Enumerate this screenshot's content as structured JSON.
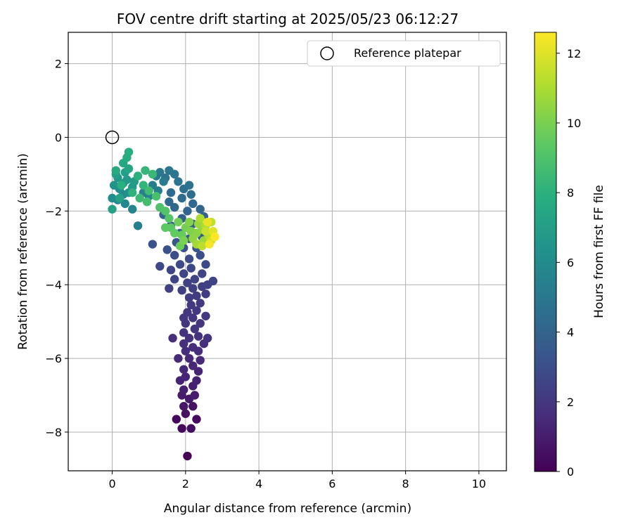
{
  "chart_data": {
    "type": "scatter",
    "title": "FOV centre drift starting at 2025/05/23 06:12:27",
    "xlabel": "Angular distance from reference (arcmin)",
    "ylabel": "Rotation from reference (arcmin)",
    "xlim": [
      -1.2,
      10.75
    ],
    "ylim": [
      -9.05,
      2.85
    ],
    "xticks": [
      "0",
      "2",
      "4",
      "6",
      "8",
      "10"
    ],
    "yticks": [
      "−8",
      "−6",
      "−4",
      "−2",
      "0",
      "2"
    ],
    "grid": true,
    "legend": {
      "position": "top-right",
      "entries": [
        "Reference platepar"
      ]
    },
    "colorbar": {
      "label": "Hours from first FF file",
      "range": [
        0,
        12.6
      ],
      "ticks": [
        "0",
        "2",
        "4",
        "6",
        "8",
        "10",
        "12"
      ],
      "colormap": "viridis"
    },
    "reference_point": {
      "x": 0,
      "y": 0,
      "marker": "open-circle"
    },
    "series": [
      {
        "marker": "filled-circle",
        "points": [
          [
            2.05,
            -8.65,
            0.0
          ],
          [
            1.75,
            -7.65,
            0.3
          ],
          [
            2.3,
            -7.65,
            0.4
          ],
          [
            1.9,
            -7.9,
            0.3
          ],
          [
            2.15,
            -7.9,
            0.5
          ],
          [
            2.0,
            -7.5,
            0.6
          ],
          [
            2.2,
            -7.3,
            0.7
          ],
          [
            1.95,
            -7.3,
            0.8
          ],
          [
            2.1,
            -7.1,
            0.9
          ],
          [
            1.9,
            -7.0,
            1.0
          ],
          [
            2.25,
            -7.0,
            1.0
          ],
          [
            1.95,
            -6.85,
            1.1
          ],
          [
            2.2,
            -6.75,
            1.1
          ],
          [
            1.85,
            -6.6,
            1.2
          ],
          [
            2.3,
            -6.6,
            1.2
          ],
          [
            2.0,
            -6.5,
            1.3
          ],
          [
            2.35,
            -6.35,
            1.3
          ],
          [
            1.95,
            -6.3,
            1.4
          ],
          [
            2.2,
            -6.2,
            1.4
          ],
          [
            1.8,
            -6.0,
            1.5
          ],
          [
            2.4,
            -6.05,
            1.5
          ],
          [
            2.1,
            -6.0,
            1.5
          ],
          [
            2.0,
            -5.8,
            1.6
          ],
          [
            2.35,
            -5.8,
            1.6
          ],
          [
            2.2,
            -5.7,
            1.6
          ],
          [
            1.95,
            -5.6,
            1.7
          ],
          [
            2.5,
            -5.6,
            1.7
          ],
          [
            1.65,
            -5.45,
            1.7
          ],
          [
            2.1,
            -5.45,
            1.8
          ],
          [
            2.35,
            -5.4,
            1.8
          ],
          [
            2.6,
            -5.45,
            1.8
          ],
          [
            1.95,
            -5.3,
            1.8
          ],
          [
            2.25,
            -5.2,
            1.9
          ],
          [
            2.0,
            -5.05,
            1.9
          ],
          [
            2.4,
            -5.05,
            1.9
          ],
          [
            1.95,
            -4.9,
            2.0
          ],
          [
            2.2,
            -4.9,
            2.0
          ],
          [
            2.55,
            -4.85,
            2.0
          ],
          [
            2.05,
            -4.75,
            2.0
          ],
          [
            2.3,
            -4.7,
            2.1
          ],
          [
            2.15,
            -4.55,
            2.1
          ],
          [
            2.4,
            -4.5,
            2.1
          ],
          [
            2.1,
            -4.35,
            2.2
          ],
          [
            2.3,
            -4.3,
            2.2
          ],
          [
            2.55,
            -4.25,
            2.2
          ],
          [
            1.9,
            -4.15,
            2.3
          ],
          [
            2.2,
            -4.1,
            2.3
          ],
          [
            2.45,
            -4.05,
            2.3
          ],
          [
            1.55,
            -4.1,
            2.4
          ],
          [
            2.05,
            -3.95,
            2.4
          ],
          [
            2.6,
            -4.0,
            2.4
          ],
          [
            1.7,
            -3.85,
            2.5
          ],
          [
            2.25,
            -3.85,
            2.5
          ],
          [
            2.75,
            -3.9,
            2.5
          ],
          [
            1.95,
            -3.7,
            2.6
          ],
          [
            2.45,
            -3.7,
            2.6
          ],
          [
            1.6,
            -3.6,
            2.6
          ],
          [
            2.15,
            -3.55,
            2.7
          ],
          [
            1.3,
            -3.5,
            2.8
          ],
          [
            1.85,
            -3.45,
            2.8
          ],
          [
            2.55,
            -3.45,
            2.8
          ],
          [
            2.1,
            -3.3,
            2.9
          ],
          [
            1.7,
            -3.2,
            3.0
          ],
          [
            2.4,
            -3.2,
            3.0
          ],
          [
            1.5,
            -3.05,
            3.1
          ],
          [
            1.95,
            -3.0,
            3.1
          ],
          [
            2.3,
            -3.0,
            3.2
          ],
          [
            1.1,
            -2.9,
            3.2
          ],
          [
            1.75,
            -2.85,
            3.3
          ],
          [
            2.1,
            -2.75,
            3.4
          ],
          [
            2.45,
            -2.7,
            3.5
          ],
          [
            1.85,
            -2.6,
            3.6
          ],
          [
            1.6,
            -2.4,
            3.7
          ],
          [
            2.2,
            -2.35,
            3.8
          ],
          [
            1.9,
            -2.2,
            3.9
          ],
          [
            2.5,
            -2.15,
            4.0
          ],
          [
            1.4,
            -2.1,
            4.0
          ],
          [
            2.05,
            -2.0,
            4.1
          ],
          [
            2.4,
            -1.95,
            4.1
          ],
          [
            1.7,
            -1.9,
            4.2
          ],
          [
            2.2,
            -1.8,
            4.3
          ],
          [
            1.55,
            -1.75,
            4.3
          ],
          [
            1.9,
            -1.65,
            4.4
          ],
          [
            2.15,
            -1.55,
            4.5
          ],
          [
            1.6,
            -1.5,
            4.5
          ],
          [
            1.95,
            -1.4,
            4.6
          ],
          [
            2.1,
            -1.3,
            4.7
          ],
          [
            1.8,
            -1.2,
            4.8
          ],
          [
            1.45,
            -1.1,
            4.8
          ],
          [
            1.7,
            -1.0,
            4.9
          ],
          [
            1.3,
            -0.95,
            5.0
          ],
          [
            1.55,
            -0.9,
            5.0
          ],
          [
            1.2,
            -1.05,
            5.1
          ],
          [
            1.4,
            -1.2,
            5.2
          ],
          [
            1.1,
            -1.3,
            5.3
          ],
          [
            1.25,
            -1.45,
            5.3
          ],
          [
            0.7,
            -2.4,
            5.4
          ],
          [
            0.85,
            -1.5,
            5.5
          ],
          [
            1.0,
            -1.6,
            5.6
          ],
          [
            0.55,
            -1.95,
            5.7
          ],
          [
            0.35,
            -1.8,
            5.8
          ],
          [
            0.15,
            -1.7,
            5.9
          ],
          [
            0.3,
            -1.55,
            6.0
          ],
          [
            0.0,
            -1.65,
            6.1
          ],
          [
            0.2,
            -1.4,
            6.2
          ],
          [
            0.45,
            -1.5,
            6.3
          ],
          [
            0.05,
            -1.3,
            6.4
          ],
          [
            0.3,
            -1.25,
            6.5
          ],
          [
            0.55,
            -1.35,
            6.6
          ],
          [
            0.15,
            -1.1,
            6.7
          ],
          [
            0.4,
            -1.15,
            6.8
          ],
          [
            0.6,
            -1.2,
            6.9
          ],
          [
            0.1,
            -1.0,
            7.0
          ],
          [
            0.35,
            -0.95,
            7.1
          ],
          [
            0.0,
            -1.95,
            7.2
          ],
          [
            0.2,
            -1.65,
            7.3
          ],
          [
            0.45,
            -0.85,
            7.4
          ],
          [
            0.3,
            -0.7,
            7.5
          ],
          [
            0.1,
            -0.9,
            7.6
          ],
          [
            0.4,
            -0.55,
            7.7
          ],
          [
            0.45,
            -0.4,
            7.8
          ],
          [
            0.25,
            -1.3,
            7.9
          ],
          [
            0.7,
            -1.05,
            8.0
          ],
          [
            0.55,
            -1.5,
            8.1
          ],
          [
            0.85,
            -1.3,
            8.2
          ],
          [
            0.9,
            -0.9,
            8.3
          ],
          [
            1.1,
            -1.0,
            8.4
          ],
          [
            0.75,
            -1.65,
            8.5
          ],
          [
            1.0,
            -1.45,
            8.6
          ],
          [
            0.95,
            -1.75,
            8.7
          ],
          [
            1.2,
            -1.6,
            8.8
          ],
          [
            1.3,
            -1.9,
            9.0
          ],
          [
            1.45,
            -2.0,
            9.1
          ],
          [
            1.55,
            -2.2,
            9.2
          ],
          [
            1.6,
            -2.45,
            9.3
          ],
          [
            1.45,
            -2.45,
            9.4
          ],
          [
            1.7,
            -2.6,
            9.5
          ],
          [
            1.9,
            -2.65,
            9.6
          ],
          [
            1.85,
            -2.95,
            9.7
          ],
          [
            1.8,
            -2.3,
            9.8
          ],
          [
            2.0,
            -2.45,
            9.9
          ],
          [
            1.95,
            -2.8,
            10.0
          ],
          [
            2.15,
            -2.55,
            10.1
          ],
          [
            2.1,
            -2.3,
            10.2
          ],
          [
            2.3,
            -2.6,
            10.3
          ],
          [
            2.2,
            -2.75,
            10.4
          ],
          [
            2.45,
            -2.5,
            10.5
          ],
          [
            2.35,
            -2.35,
            10.6
          ],
          [
            2.5,
            -2.8,
            10.7
          ],
          [
            2.3,
            -2.9,
            10.8
          ],
          [
            2.6,
            -2.6,
            10.9
          ],
          [
            2.4,
            -2.2,
            11.0
          ],
          [
            2.55,
            -2.4,
            11.1
          ],
          [
            2.65,
            -2.7,
            11.2
          ],
          [
            2.45,
            -2.95,
            11.3
          ],
          [
            2.7,
            -2.3,
            11.4
          ],
          [
            2.55,
            -2.55,
            11.6
          ],
          [
            2.7,
            -2.8,
            11.8
          ],
          [
            2.75,
            -2.55,
            12.0
          ],
          [
            2.6,
            -2.3,
            12.2
          ],
          [
            2.65,
            -2.9,
            12.4
          ],
          [
            2.8,
            -2.7,
            12.6
          ]
        ]
      }
    ]
  }
}
